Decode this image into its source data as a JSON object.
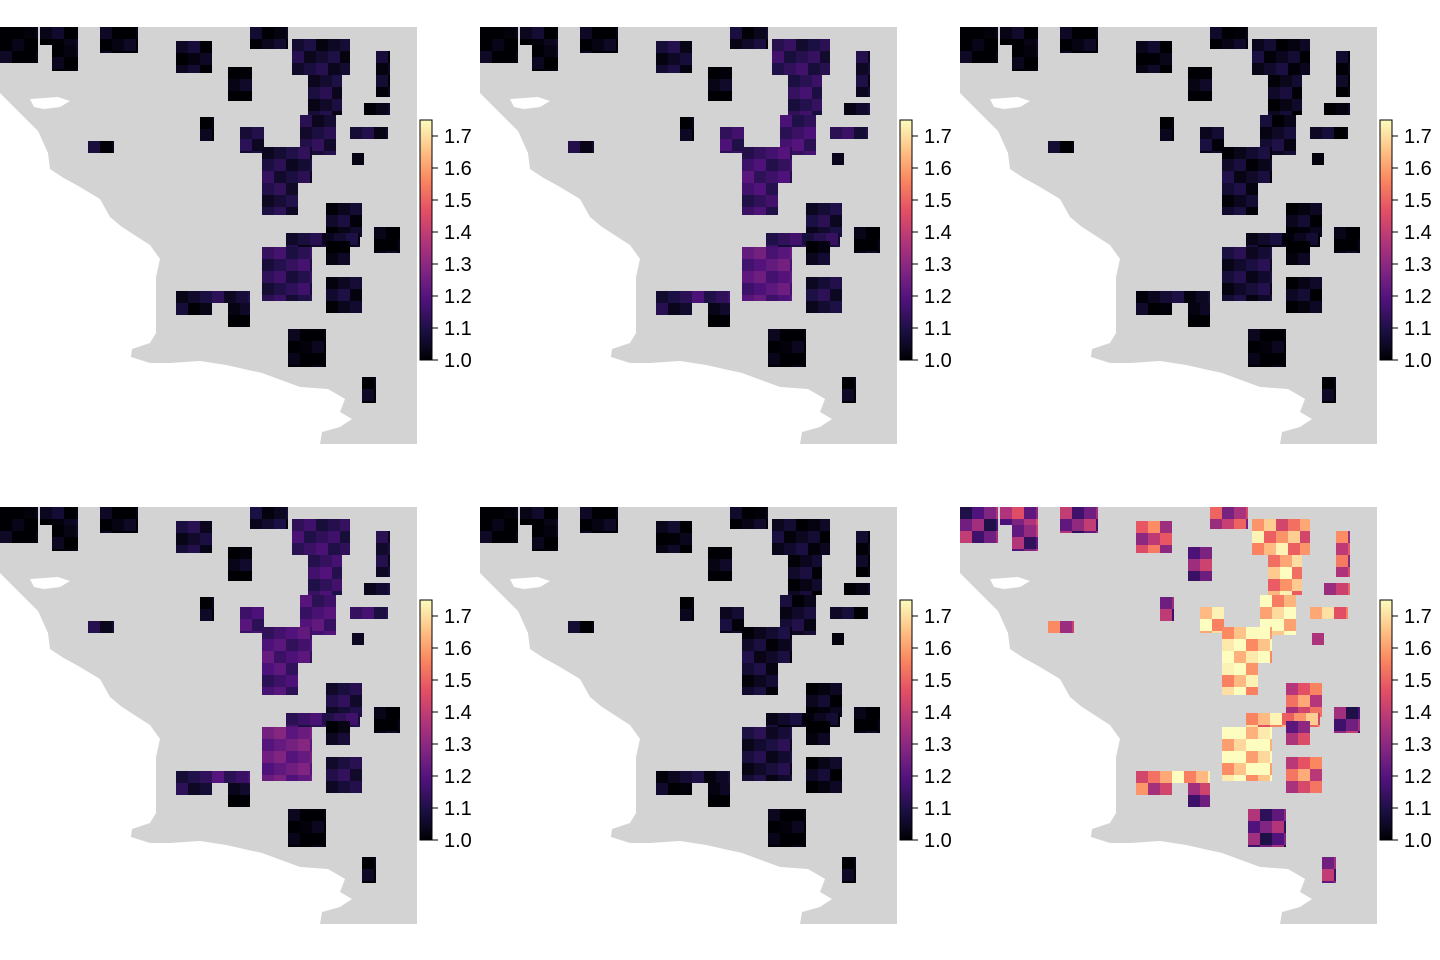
{
  "figure": {
    "layout": "2 rows x 3 columns of raster maps",
    "background_color": "#ffffff",
    "land_color": "#d3d3d3",
    "legend_placement": "right of each map",
    "clipped_at_right_edge": "third column legend labels cut off at page edge"
  },
  "color_scale": {
    "name": "magma",
    "range": [
      1.0,
      1.75
    ],
    "ticks": [
      "1.0",
      "1.1",
      "1.2",
      "1.3",
      "1.4",
      "1.5",
      "1.6",
      "1.7"
    ],
    "stops": [
      "#000004",
      "#1c1044",
      "#4f127b",
      "#812581",
      "#b5367a",
      "#e55064",
      "#fb8761",
      "#fec287",
      "#fcfdbf"
    ]
  },
  "panels": [
    {
      "id": "top-left",
      "ticks": [
        "1.0",
        "1.1",
        "1.2",
        "1.3",
        "1.4",
        "1.5",
        "1.6",
        "1.7"
      ],
      "value_range": [
        1.0,
        1.3
      ]
    },
    {
      "id": "top-middle",
      "ticks": [
        "1.0",
        "1.1",
        "1.2",
        "1.3",
        "1.4",
        "1.5",
        "1.6",
        "1.7"
      ],
      "value_range": [
        1.0,
        1.4
      ]
    },
    {
      "id": "top-right",
      "ticks": [
        "1.0",
        "1.1",
        "1.2",
        "1.3",
        "1.4",
        "1.5",
        "1.6",
        "1.7"
      ],
      "value_range": [
        1.0,
        1.2
      ]
    },
    {
      "id": "bottom-left",
      "ticks": [
        "1.0",
        "1.1",
        "1.2",
        "1.3",
        "1.4",
        "1.5",
        "1.6",
        "1.7"
      ],
      "value_range": [
        1.0,
        1.45
      ]
    },
    {
      "id": "bottom-middle",
      "ticks": [
        "1.0",
        "1.1",
        "1.2",
        "1.3",
        "1.4",
        "1.5",
        "1.6",
        "1.7"
      ],
      "value_range": [
        1.0,
        1.2
      ]
    },
    {
      "id": "bottom-right",
      "ticks": [
        "1.0",
        "1.1",
        "1.2",
        "1.3",
        "1.4",
        "1.5",
        "1.6",
        "1.7"
      ],
      "value_range": [
        1.1,
        1.72
      ]
    }
  ]
}
